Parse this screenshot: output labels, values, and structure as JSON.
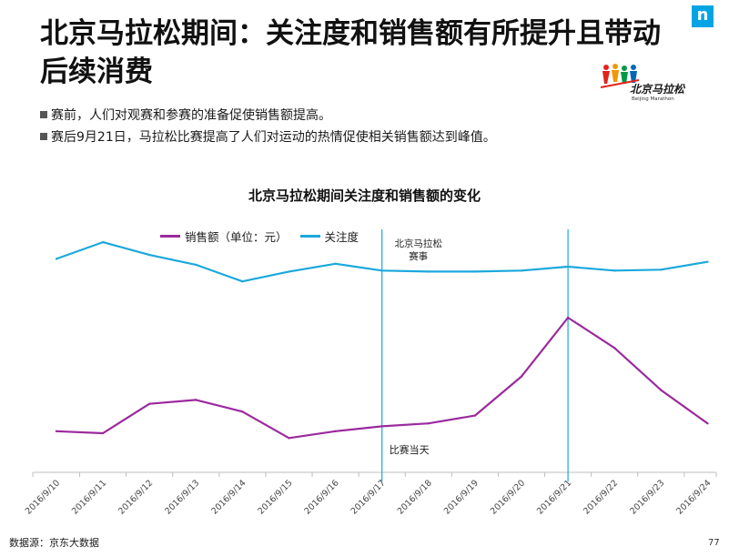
{
  "header": {
    "title": "北京马拉松期间：关注度和销售额有所提升且带动后续消费",
    "brand_mark": "n"
  },
  "logo": {
    "main": "北京马拉松",
    "sub": "Beijing Marathon"
  },
  "bullets": [
    "赛前，人们对观赛和参赛的准备促使销售额提高。",
    "赛后9月21日，马拉松比赛提高了人们对运动的热情促使相关销售额达到峰值。"
  ],
  "chart_data": {
    "type": "line",
    "title": "北京马拉松期间关注度和销售额的变化",
    "categories": [
      "2016/9/10",
      "2016/9/11",
      "2016/9/12",
      "2016/9/13",
      "2016/9/14",
      "2016/9/15",
      "2016/9/16",
      "2016/9/17",
      "2016/9/18",
      "2016/9/19",
      "2016/9/20",
      "2016/9/21",
      "2016/9/22",
      "2016/9/23",
      "2016/9/24"
    ],
    "series": [
      {
        "name": "销售额（单位：元）",
        "color": "#9b2a9e",
        "values": [
          42,
          40,
          70,
          74,
          62,
          35,
          42,
          47,
          50,
          58,
          98,
          158,
          127,
          84,
          50
        ]
      },
      {
        "name": "关注度",
        "color": "#1ba8dc",
        "values": [
          218,
          235,
          222,
          212,
          195,
          205,
          213,
          206,
          205,
          205,
          206,
          210,
          206,
          207,
          215
        ]
      }
    ],
    "ylim": [
      0,
      250
    ],
    "annotations": [
      {
        "category": "2016/9/17",
        "label": "比赛当天",
        "position": "bottom"
      },
      {
        "category": "2016/9/21",
        "label": "",
        "position": "top"
      }
    ],
    "event_label_line1": "北京马拉松",
    "event_label_line2": "赛事"
  },
  "footer": {
    "source": "数据源：京东大数据",
    "page": "77"
  }
}
